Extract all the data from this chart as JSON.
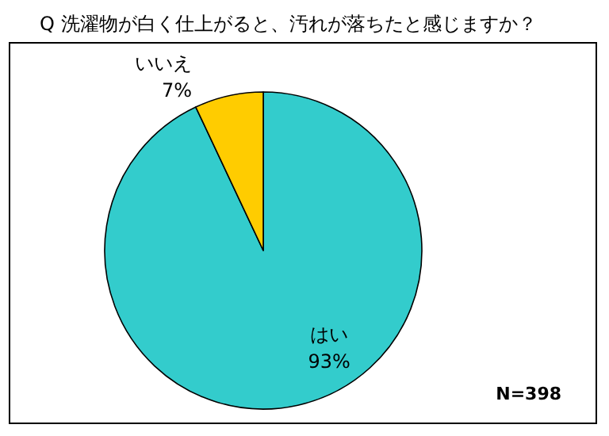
{
  "chart_data": {
    "type": "pie",
    "title": "Q 洗濯物が白く仕上がると、汚れが落ちたと感じますか？",
    "categories": [
      "はい",
      "いいえ"
    ],
    "values": [
      93,
      7
    ],
    "colors": [
      "#33cccc",
      "#ffcc00"
    ],
    "value_labels": [
      "93%",
      "7%"
    ],
    "legend": false,
    "annotations": [
      "N=398"
    ]
  }
}
